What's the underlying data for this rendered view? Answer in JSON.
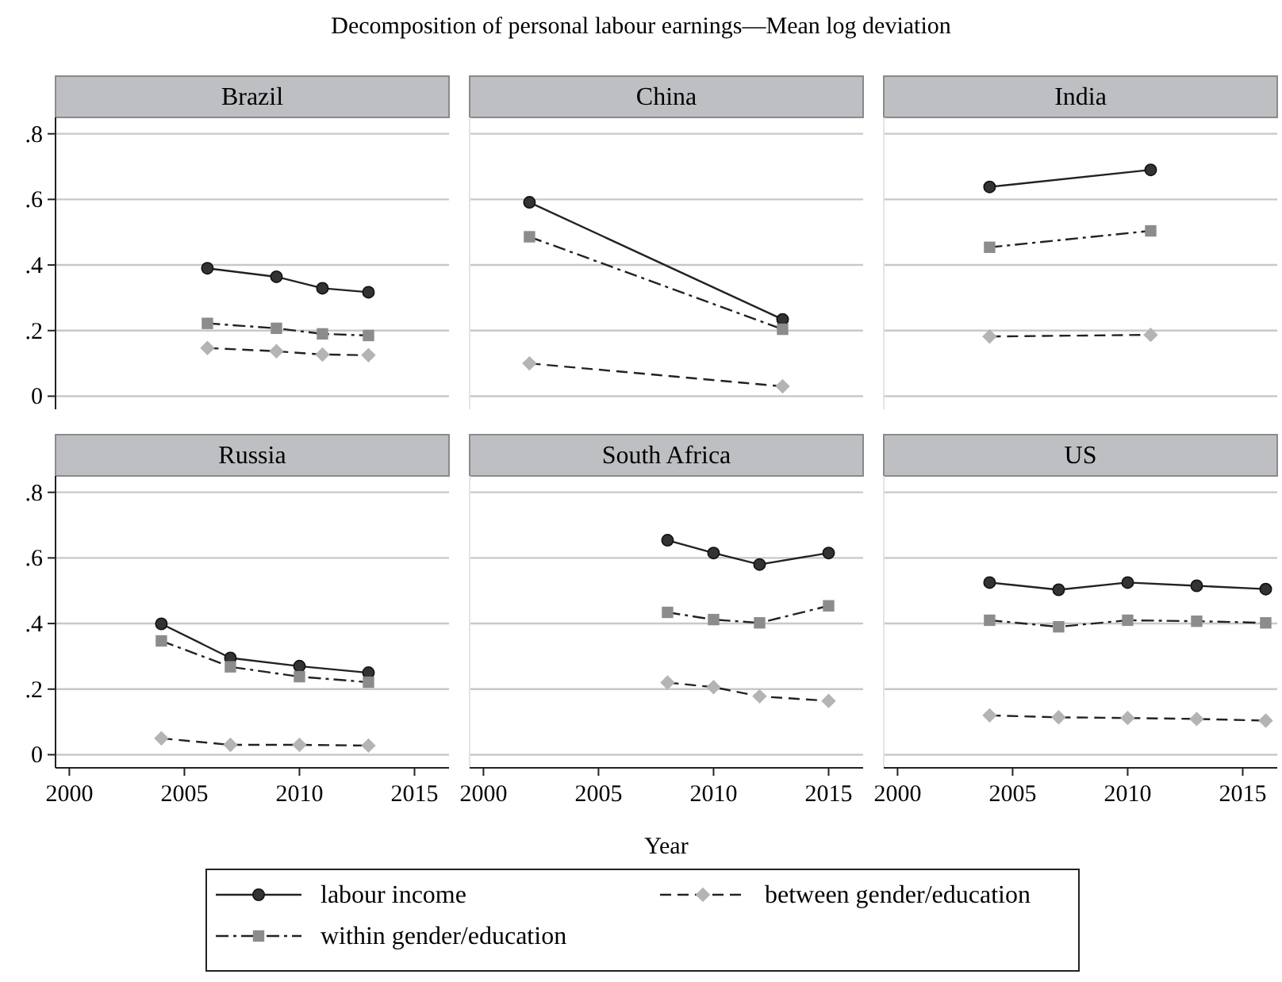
{
  "chart_data": [
    {
      "type": "line",
      "title": "Brazil",
      "annotations": [
        "Decomposition of personal labour earnings—Mean log deviation"
      ],
      "xlim": [
        1999.4,
        2016.5
      ],
      "xticks": [
        2000,
        2005,
        2010,
        2015
      ],
      "ylim": [
        -0.04,
        0.85
      ],
      "yticks": [
        {
          "value": 0,
          "label": "0"
        },
        {
          "value": 0.2,
          "label": ".2"
        },
        {
          "value": 0.4,
          "label": ".4"
        },
        {
          "value": 0.6,
          "label": ".6"
        },
        {
          "value": 0.8,
          "label": ".8"
        }
      ],
      "grid": "y",
      "tick_labels": "y",
      "series": [
        {
          "color": "#333333",
          "marker": "circle",
          "line_style": "solid",
          "x": [
            2006,
            2009,
            2011,
            2013
          ],
          "values": [
            0.39,
            0.364,
            0.329,
            0.317
          ]
        },
        {
          "color": "#8c8c8c",
          "marker": "square",
          "line_style": "dashdot",
          "x": [
            2006,
            2009,
            2011,
            2013
          ],
          "values": [
            0.222,
            0.207,
            0.19,
            0.185
          ]
        },
        {
          "color": "#b4b4b4",
          "marker": "diamond",
          "line_style": "dashed",
          "x": [
            2006,
            2009,
            2011,
            2013
          ],
          "values": [
            0.147,
            0.137,
            0.127,
            0.125
          ]
        }
      ]
    },
    {
      "type": "line",
      "title": "China",
      "xlim": [
        1999.4,
        2016.5
      ],
      "xticks": [
        2000,
        2005,
        2010,
        2015
      ],
      "ylim": [
        -0.04,
        0.85
      ],
      "yticks": [
        {
          "value": 0,
          "label": null
        },
        {
          "value": 0.2,
          "label": null
        },
        {
          "value": 0.4,
          "label": null
        },
        {
          "value": 0.6,
          "label": null
        },
        {
          "value": 0.8,
          "label": null
        }
      ],
      "grid": "y",
      "tick_labels": false,
      "series": [
        {
          "color": "#333333",
          "marker": "circle",
          "line_style": "solid",
          "x": [
            2002,
            2013
          ],
          "values": [
            0.591,
            0.234
          ]
        },
        {
          "color": "#8c8c8c",
          "marker": "square",
          "line_style": "dashdot",
          "x": [
            2002,
            2013
          ],
          "values": [
            0.486,
            0.204
          ]
        },
        {
          "color": "#b4b4b4",
          "marker": "diamond",
          "line_style": "dashed",
          "x": [
            2002,
            2013
          ],
          "values": [
            0.1,
            0.03
          ]
        }
      ]
    },
    {
      "type": "line",
      "title": "India",
      "xlim": [
        1999.4,
        2016.5
      ],
      "xticks": [
        2000,
        2005,
        2010,
        2015
      ],
      "ylim": [
        -0.04,
        0.85
      ],
      "yticks": [
        {
          "value": 0,
          "label": null
        },
        {
          "value": 0.2,
          "label": null
        },
        {
          "value": 0.4,
          "label": null
        },
        {
          "value": 0.6,
          "label": null
        },
        {
          "value": 0.8,
          "label": null
        }
      ],
      "grid": "y",
      "tick_labels": false,
      "series": [
        {
          "color": "#333333",
          "marker": "circle",
          "line_style": "solid",
          "x": [
            2004,
            2011
          ],
          "values": [
            0.638,
            0.69
          ]
        },
        {
          "color": "#8c8c8c",
          "marker": "square",
          "line_style": "dashdot",
          "x": [
            2004,
            2011
          ],
          "values": [
            0.454,
            0.504
          ]
        },
        {
          "color": "#b4b4b4",
          "marker": "diamond",
          "line_style": "dashed",
          "x": [
            2004,
            2011
          ],
          "values": [
            0.182,
            0.187
          ]
        }
      ]
    },
    {
      "type": "line",
      "title": "Russia",
      "xlim": [
        1999.4,
        2016.5
      ],
      "xticks": [
        2000,
        2005,
        2010,
        2015
      ],
      "ylim": [
        -0.04,
        0.85
      ],
      "yticks": [
        {
          "value": 0,
          "label": "0"
        },
        {
          "value": 0.2,
          "label": ".2"
        },
        {
          "value": 0.4,
          "label": ".4"
        },
        {
          "value": 0.6,
          "label": ".6"
        },
        {
          "value": 0.8,
          "label": ".8"
        }
      ],
      "grid": "y",
      "series": [
        {
          "color": "#333333",
          "marker": "circle",
          "line_style": "solid",
          "x": [
            2004,
            2007,
            2010,
            2013
          ],
          "values": [
            0.399,
            0.295,
            0.27,
            0.25
          ]
        },
        {
          "color": "#8c8c8c",
          "marker": "square",
          "line_style": "dashdot",
          "x": [
            2004,
            2007,
            2010,
            2013
          ],
          "values": [
            0.347,
            0.268,
            0.238,
            0.221
          ]
        },
        {
          "color": "#b4b4b4",
          "marker": "diamond",
          "line_style": "dashed",
          "x": [
            2004,
            2007,
            2010,
            2013
          ],
          "values": [
            0.05,
            0.03,
            0.03,
            0.028
          ]
        }
      ]
    },
    {
      "type": "line",
      "title": "South Africa",
      "xlabel": "Year",
      "legend": "bottom",
      "xlim": [
        1999.4,
        2016.5
      ],
      "xticks": [
        2000,
        2005,
        2010,
        2015
      ],
      "ylim": [
        -0.04,
        0.85
      ],
      "yticks": [
        {
          "value": 0,
          "label": null
        },
        {
          "value": 0.2,
          "label": null
        },
        {
          "value": 0.4,
          "label": null
        },
        {
          "value": 0.6,
          "label": null
        },
        {
          "value": 0.8,
          "label": null
        }
      ],
      "grid": "y",
      "tick_labels": "x",
      "series": [
        {
          "name": "labour income",
          "color": "#333333",
          "marker": "circle",
          "line_style": "solid",
          "x": [
            2008,
            2010,
            2012,
            2015
          ],
          "values": [
            0.654,
            0.615,
            0.58,
            0.615
          ]
        },
        {
          "name": "within gender/education",
          "color": "#8c8c8c",
          "marker": "square",
          "line_style": "dashdot",
          "x": [
            2008,
            2010,
            2012,
            2015
          ],
          "values": [
            0.434,
            0.412,
            0.402,
            0.454
          ]
        },
        {
          "name": "between gender/education",
          "color": "#b4b4b4",
          "marker": "diamond",
          "line_style": "dashed",
          "x": [
            2008,
            2010,
            2012,
            2015
          ],
          "values": [
            0.22,
            0.206,
            0.178,
            0.164
          ]
        }
      ]
    },
    {
      "type": "line",
      "title": "US",
      "xlim": [
        1999.4,
        2016.5
      ],
      "xticks": [
        2000,
        2005,
        2010,
        2015
      ],
      "ylim": [
        -0.04,
        0.85
      ],
      "yticks": [
        {
          "value": 0,
          "label": null
        },
        {
          "value": 0.2,
          "label": null
        },
        {
          "value": 0.4,
          "label": null
        },
        {
          "value": 0.6,
          "label": null
        },
        {
          "value": 0.8,
          "label": null
        }
      ],
      "grid": "y",
      "tick_labels": "x",
      "series": [
        {
          "color": "#333333",
          "marker": "circle",
          "line_style": "solid",
          "x": [
            2004,
            2007,
            2010,
            2013,
            2016
          ],
          "values": [
            0.525,
            0.503,
            0.525,
            0.515,
            0.505
          ]
        },
        {
          "color": "#8c8c8c",
          "marker": "square",
          "line_style": "dashdot",
          "x": [
            2004,
            2007,
            2010,
            2013,
            2016
          ],
          "values": [
            0.41,
            0.39,
            0.41,
            0.407,
            0.402
          ]
        },
        {
          "color": "#b4b4b4",
          "marker": "diamond",
          "line_style": "dashed",
          "x": [
            2004,
            2007,
            2010,
            2013,
            2016
          ],
          "values": [
            0.12,
            0.114,
            0.112,
            0.109,
            0.104
          ]
        }
      ]
    }
  ]
}
